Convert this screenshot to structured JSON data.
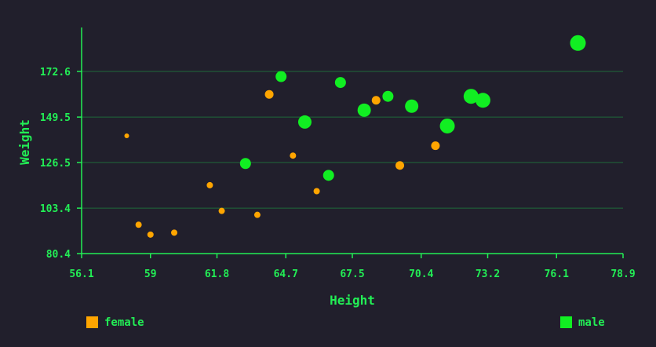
{
  "chart_data": {
    "type": "scatter",
    "xlabel": "Height",
    "ylabel": "Weight",
    "xlim": [
      56.1,
      78.9
    ],
    "ylim": [
      80.4,
      195.0
    ],
    "x_ticks": [
      "56.1",
      "59",
      "61.8",
      "64.7",
      "67.5",
      "70.4",
      "73.2",
      "76.1",
      "78.9"
    ],
    "y_ticks": [
      "80.4",
      "103.4",
      "126.5",
      "149.5",
      "172.6"
    ],
    "grid": "horizontal",
    "legend_placement": "bottom",
    "series": [
      {
        "name": "female",
        "color": "#ffa500",
        "points": [
          {
            "x": 58.0,
            "y": 140.0,
            "size": 1
          },
          {
            "x": 58.5,
            "y": 95.0,
            "size": 2
          },
          {
            "x": 59.0,
            "y": 90.0,
            "size": 2
          },
          {
            "x": 60.0,
            "y": 91.0,
            "size": 2
          },
          {
            "x": 61.5,
            "y": 115.0,
            "size": 2
          },
          {
            "x": 62.0,
            "y": 102.0,
            "size": 2
          },
          {
            "x": 63.5,
            "y": 100.0,
            "size": 2
          },
          {
            "x": 64.0,
            "y": 161.0,
            "size": 3
          },
          {
            "x": 65.0,
            "y": 130.0,
            "size": 2
          },
          {
            "x": 66.0,
            "y": 112.0,
            "size": 2
          },
          {
            "x": 68.5,
            "y": 158.0,
            "size": 3
          },
          {
            "x": 69.5,
            "y": 125.0,
            "size": 3
          },
          {
            "x": 71.0,
            "y": 135.0,
            "size": 3
          }
        ]
      },
      {
        "name": "male",
        "color": "#11ee22",
        "points": [
          {
            "x": 63.0,
            "y": 126.0,
            "size": 4
          },
          {
            "x": 64.5,
            "y": 170.0,
            "size": 4
          },
          {
            "x": 65.5,
            "y": 147.0,
            "size": 5
          },
          {
            "x": 66.5,
            "y": 120.0,
            "size": 4
          },
          {
            "x": 67.0,
            "y": 167.0,
            "size": 4
          },
          {
            "x": 68.0,
            "y": 153.0,
            "size": 5
          },
          {
            "x": 69.0,
            "y": 160.0,
            "size": 4
          },
          {
            "x": 70.0,
            "y": 155.0,
            "size": 5
          },
          {
            "x": 71.5,
            "y": 145.0,
            "size": 6
          },
          {
            "x": 72.5,
            "y": 160.0,
            "size": 6
          },
          {
            "x": 73.0,
            "y": 158.0,
            "size": 6
          },
          {
            "x": 77.0,
            "y": 187.0,
            "size": 7
          }
        ]
      }
    ]
  }
}
